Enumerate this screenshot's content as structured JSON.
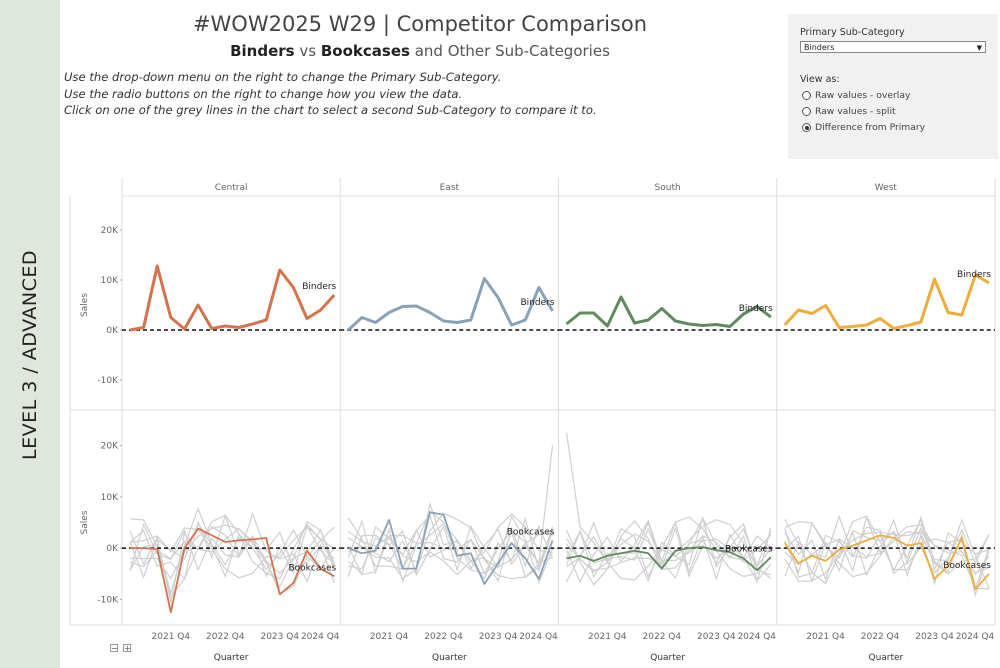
{
  "sidebar": {
    "label": "LEVEL 3 / ADVANCED"
  },
  "header": {
    "title": "#WOW2025 W29  |  Competitor Comparison",
    "subtitle": {
      "primary": "Binders",
      "vs": "vs",
      "secondary": "Bookcases",
      "rest": "and Other Sub-Categories"
    },
    "instructions": [
      "Use the drop-down menu on the right to change the Primary Sub-Category.",
      "Use the radio buttons on the right to change how you view the data.",
      "Click on one of the grey lines in the chart to select a second Sub-Category to compare it to."
    ]
  },
  "controls": {
    "dropdown_label": "Primary Sub-Category",
    "dropdown_value": "Binders",
    "view_as_label": "View as:",
    "options": [
      {
        "label": "Raw values - overlay",
        "selected": false
      },
      {
        "label": "Raw values - split",
        "selected": false
      },
      {
        "label": "Difference from Primary",
        "selected": true
      }
    ]
  },
  "colors": {
    "Central": "#d6734f",
    "East": "#8aa2b9",
    "South": "#628a5f",
    "West": "#f0ad3c",
    "other": "#cfcfcf"
  },
  "chart_data": {
    "type": "line",
    "regions": [
      "Central",
      "East",
      "South",
      "West"
    ],
    "x_ticks": [
      "2021 Q4",
      "2022 Q4",
      "2023 Q4",
      "2024 Q4"
    ],
    "x_label": "Quarter",
    "y_label": "Sales",
    "top_panel": {
      "label": "Binders",
      "y_ticks": [
        "20K",
        "10K",
        "0K",
        "-10K"
      ],
      "ylim": [
        -15000,
        25000
      ],
      "series": {
        "Central": [
          0,
          500,
          12800,
          2500,
          200,
          5000,
          300,
          800,
          500,
          1200,
          2000,
          12000,
          8500,
          2300,
          4000,
          7000
        ],
        "East": [
          0,
          2500,
          1500,
          3500,
          4700,
          4800,
          3500,
          1800,
          1500,
          2000,
          10300,
          6500,
          1000,
          2000,
          8500,
          3800
        ],
        "South": [
          1200,
          3400,
          3400,
          800,
          6600,
          1400,
          2000,
          4300,
          1800,
          1200,
          900,
          1100,
          700,
          3200,
          4700,
          2600
        ],
        "West": [
          1000,
          4000,
          3300,
          4900,
          500,
          700,
          1000,
          2300,
          300,
          900,
          1600,
          10200,
          3500,
          3000,
          11000,
          9400
        ]
      }
    },
    "bottom_panel": {
      "label": "Bookcases",
      "y_ticks": [
        "20K",
        "10K",
        "0K",
        "-10K"
      ],
      "ylim": [
        -15000,
        25000
      ],
      "series": {
        "Central": [
          0,
          0,
          -200,
          -12500,
          0,
          3800,
          2500,
          1200,
          1500,
          1700,
          2000,
          -9000,
          -6800,
          -500,
          -4000,
          -5500
        ],
        "East": [
          0,
          -1000,
          -500,
          5500,
          -4000,
          -4000,
          7000,
          6500,
          -1500,
          -1000,
          -7000,
          -3000,
          1000,
          -2000,
          -6000,
          1500
        ],
        "South": [
          -2000,
          -1500,
          -2500,
          -1500,
          -1000,
          -500,
          -1000,
          -4000,
          -500,
          0,
          200,
          -400,
          -800,
          -2000,
          -4300,
          -1800
        ],
        "West": [
          1000,
          -3000,
          -1500,
          -2500,
          -300,
          500,
          1500,
          2500,
          2000,
          500,
          1000,
          -6000,
          -3500,
          2000,
          -8000,
          -5000
        ]
      },
      "grey_lines_note": "Other sub-categories shown as grey lines"
    }
  }
}
